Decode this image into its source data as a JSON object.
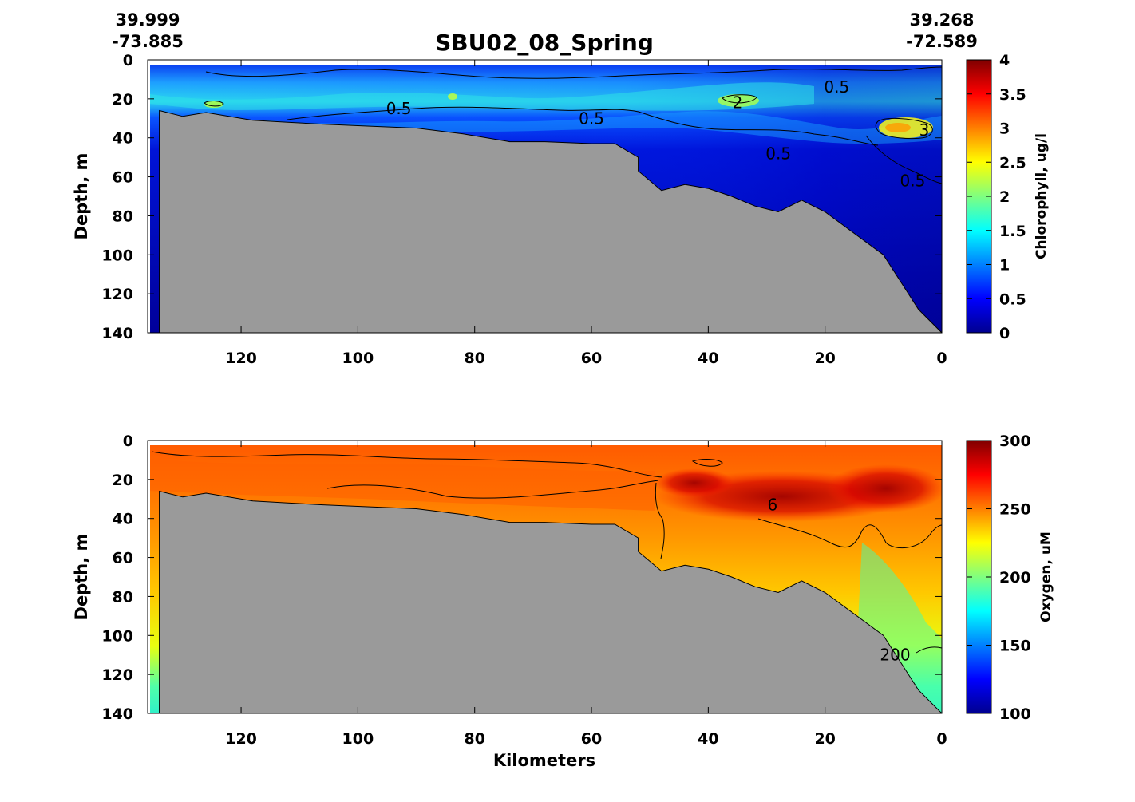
{
  "figure": {
    "title": "SBU02_08_Spring",
    "start_lat": "39.999",
    "start_lon": "-73.885",
    "end_lat": "39.268",
    "end_lon": "-72.589"
  },
  "chart_data": [
    {
      "type": "heatmap",
      "variable": "Chlorophyll",
      "xlabel": "",
      "ylabel": "Depth, m",
      "x_ticks": [
        120,
        100,
        80,
        60,
        40,
        20,
        0
      ],
      "y_ticks": [
        0,
        20,
        40,
        60,
        80,
        100,
        120,
        140
      ],
      "xlim": [
        136,
        0
      ],
      "ylim": [
        0,
        140
      ],
      "colorbar": {
        "label": "Chlorophyll, ug/l",
        "ticks": [
          "0",
          "0.5",
          "1",
          "1.5",
          "2",
          "2.5",
          "3",
          "3.5",
          "4"
        ],
        "range": [
          0,
          4
        ],
        "colormap": "jet"
      },
      "contour_labels": [
        {
          "text": "0.5",
          "km": 93,
          "depth": 25
        },
        {
          "text": "0.5",
          "km": 60,
          "depth": 30
        },
        {
          "text": "2",
          "km": 35,
          "depth": 22
        },
        {
          "text": "0.5",
          "km": 18,
          "depth": 14
        },
        {
          "text": "0.5",
          "km": 28,
          "depth": 48
        },
        {
          "text": "0.5",
          "km": 5,
          "depth": 62
        },
        {
          "text": "3",
          "km": 3,
          "depth": 36
        }
      ],
      "bathymetry_depth_m": [
        {
          "km": 134,
          "depth": 26
        },
        {
          "km": 130,
          "depth": 29
        },
        {
          "km": 126,
          "depth": 27
        },
        {
          "km": 118,
          "depth": 31
        },
        {
          "km": 112,
          "depth": 32
        },
        {
          "km": 106,
          "depth": 33
        },
        {
          "km": 98,
          "depth": 34
        },
        {
          "km": 90,
          "depth": 35
        },
        {
          "km": 82,
          "depth": 38
        },
        {
          "km": 74,
          "depth": 42
        },
        {
          "km": 68,
          "depth": 42
        },
        {
          "km": 60,
          "depth": 43
        },
        {
          "km": 56,
          "depth": 43
        },
        {
          "km": 52,
          "depth": 50
        },
        {
          "km": 52,
          "depth": 57
        },
        {
          "km": 48,
          "depth": 67
        },
        {
          "km": 44,
          "depth": 64
        },
        {
          "km": 40,
          "depth": 66
        },
        {
          "km": 36,
          "depth": 70
        },
        {
          "km": 32,
          "depth": 75
        },
        {
          "km": 28,
          "depth": 78
        },
        {
          "km": 24,
          "depth": 72
        },
        {
          "km": 20,
          "depth": 78
        },
        {
          "km": 10,
          "depth": 100
        },
        {
          "km": 4,
          "depth": 128
        },
        {
          "km": 0,
          "depth": 140
        }
      ]
    },
    {
      "type": "heatmap",
      "variable": "Oxygen",
      "xlabel": "Kilometers",
      "ylabel": "Depth, m",
      "x_ticks": [
        120,
        100,
        80,
        60,
        40,
        20,
        0
      ],
      "y_ticks": [
        0,
        20,
        40,
        60,
        80,
        100,
        120,
        140
      ],
      "xlim": [
        136,
        0
      ],
      "ylim": [
        0,
        140
      ],
      "colorbar": {
        "label": "Oxygen, uM",
        "ticks": [
          "100",
          "150",
          "200",
          "250",
          "300"
        ],
        "range": [
          100,
          300
        ],
        "colormap": "jet"
      },
      "contour_labels": [
        {
          "text": "200",
          "km": 8,
          "depth": 110
        },
        {
          "text": "6",
          "km": 29,
          "depth": 33
        }
      ],
      "bathymetry_depth_m": [
        {
          "km": 134,
          "depth": 26
        },
        {
          "km": 130,
          "depth": 29
        },
        {
          "km": 126,
          "depth": 27
        },
        {
          "km": 118,
          "depth": 31
        },
        {
          "km": 112,
          "depth": 32
        },
        {
          "km": 106,
          "depth": 33
        },
        {
          "km": 98,
          "depth": 34
        },
        {
          "km": 90,
          "depth": 35
        },
        {
          "km": 82,
          "depth": 38
        },
        {
          "km": 74,
          "depth": 42
        },
        {
          "km": 68,
          "depth": 42
        },
        {
          "km": 60,
          "depth": 43
        },
        {
          "km": 56,
          "depth": 43
        },
        {
          "km": 52,
          "depth": 50
        },
        {
          "km": 52,
          "depth": 57
        },
        {
          "km": 48,
          "depth": 67
        },
        {
          "km": 44,
          "depth": 64
        },
        {
          "km": 40,
          "depth": 66
        },
        {
          "km": 36,
          "depth": 70
        },
        {
          "km": 32,
          "depth": 75
        },
        {
          "km": 28,
          "depth": 78
        },
        {
          "km": 24,
          "depth": 72
        },
        {
          "km": 20,
          "depth": 78
        },
        {
          "km": 10,
          "depth": 100
        },
        {
          "km": 4,
          "depth": 128
        },
        {
          "km": 0,
          "depth": 140
        }
      ]
    }
  ]
}
